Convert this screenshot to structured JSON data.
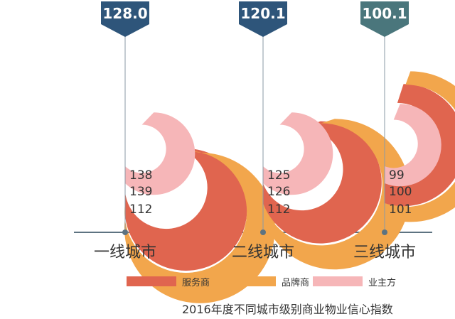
{
  "chart_data": {
    "type": "radial-bar",
    "title": "",
    "caption": "2016年度不同城市级别商业物业信心指数",
    "colors": {
      "服务商": "#e0654f",
      "品牌商": "#f2a64c",
      "业主方": "#f6b6b8"
    },
    "categories": [
      "一线城市",
      "二线城市",
      "三线城市"
    ],
    "overall": [
      "128.0",
      "120.1",
      "100.1"
    ],
    "badge_colors": [
      "#2e557a",
      "#2e557a",
      "#4a767c"
    ],
    "series": [
      {
        "name": "服务商",
        "values": [
          138,
          125,
          99
        ]
      },
      {
        "name": "品牌商",
        "values": [
          139,
          126,
          100
        ]
      },
      {
        "name": "业主方",
        "values": [
          112,
          112,
          101
        ]
      }
    ],
    "value_labels": [
      [
        "138",
        "139",
        "112"
      ],
      [
        "125",
        "126",
        "112"
      ],
      [
        "99",
        "100",
        "101"
      ]
    ],
    "scale_max": 180
  },
  "legend": [
    {
      "label": "服务商",
      "color": "#e0654f"
    },
    {
      "label": "品牌商",
      "color": "#f2a64c"
    },
    {
      "label": "业主方",
      "color": "#f6b6b8"
    }
  ]
}
